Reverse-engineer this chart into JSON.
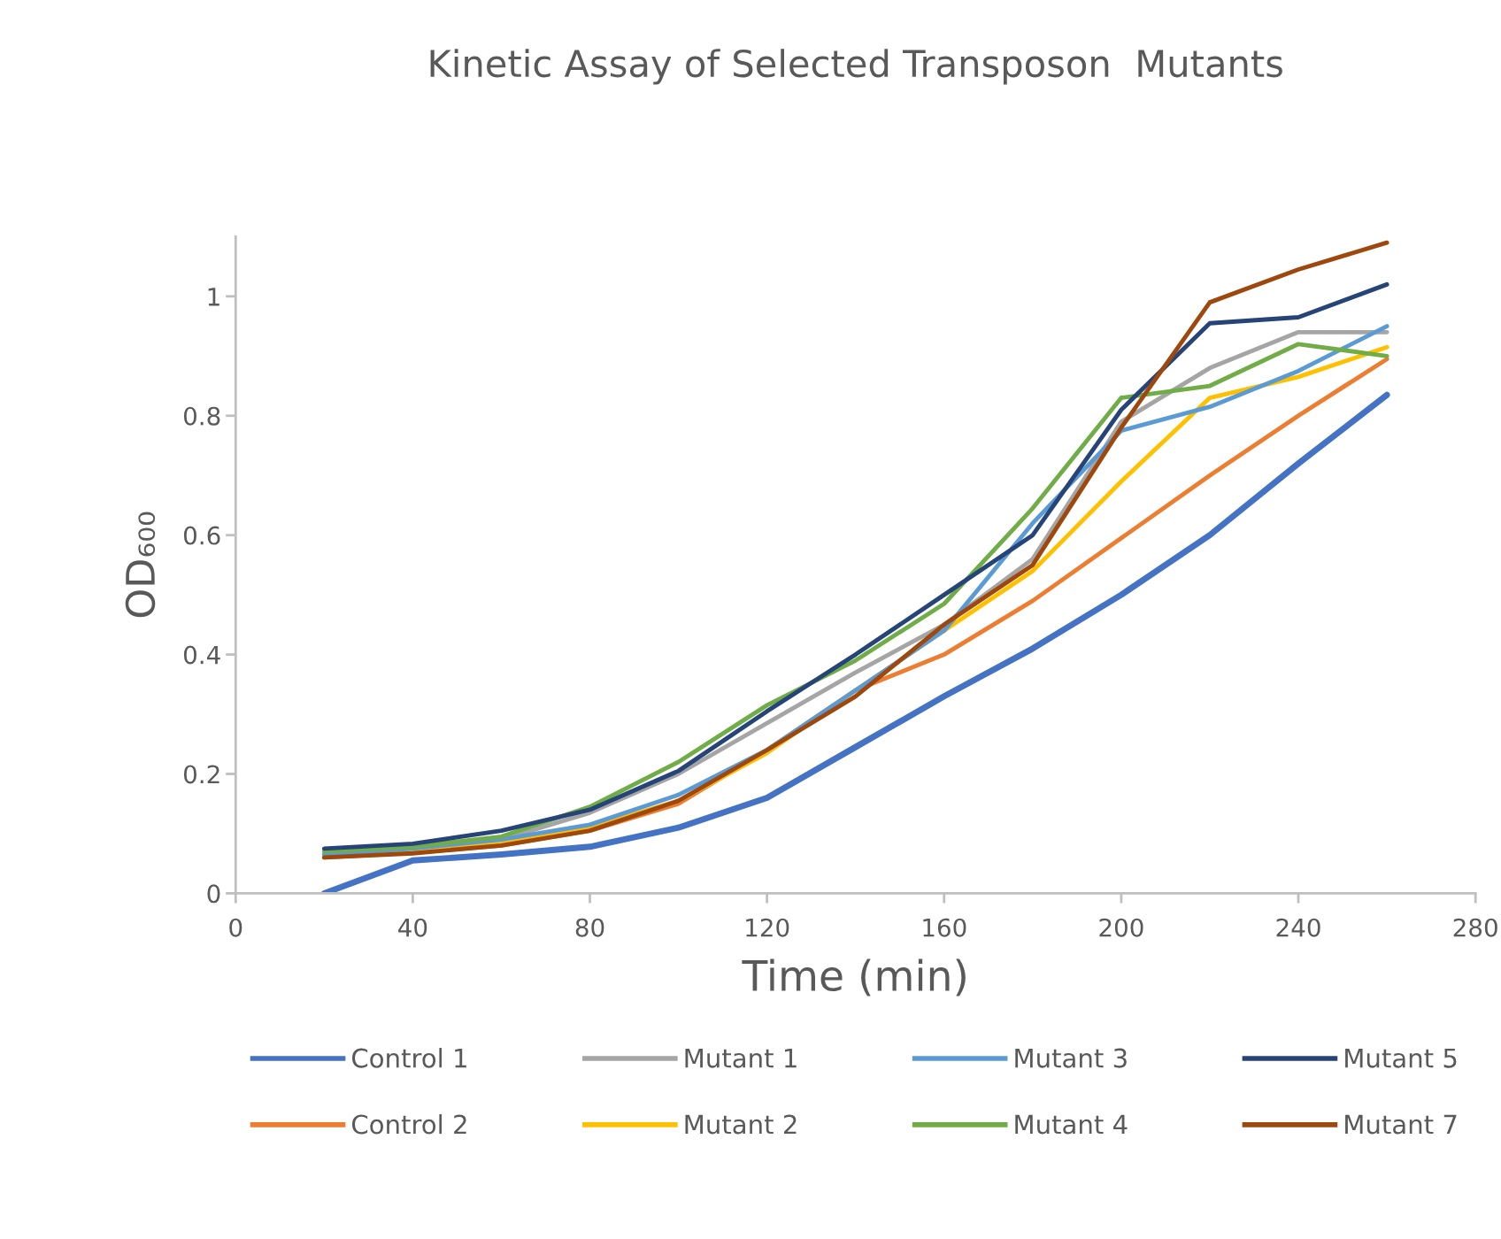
{
  "chart_data": {
    "type": "line",
    "title": "Kinetic Assay of Selected Transposon  Mutants",
    "xlabel": "Time (min)",
    "ylabel": "OD₆₀₀",
    "x": [
      20,
      40,
      60,
      80,
      100,
      120,
      140,
      160,
      180,
      200,
      220,
      240,
      260
    ],
    "series": [
      {
        "name": "Control 1",
        "color": "#4472c4",
        "values": [
          0,
          0.055,
          0.065,
          0.078,
          0.11,
          0.16,
          0.245,
          0.33,
          0.41,
          0.5,
          0.6,
          0.72,
          0.835
        ]
      },
      {
        "name": "Control 2",
        "color": "#ed7d31",
        "values": [
          0.06,
          0.068,
          0.08,
          0.105,
          0.15,
          0.24,
          0.34,
          0.4,
          0.49,
          0.595,
          0.7,
          0.8,
          0.895
        ]
      },
      {
        "name": "Mutant 1",
        "color": "#a5a5a5",
        "values": [
          0.065,
          0.075,
          0.09,
          0.135,
          0.2,
          0.285,
          0.37,
          0.45,
          0.56,
          0.79,
          0.88,
          0.94,
          0.94
        ]
      },
      {
        "name": "Mutant 2",
        "color": "#ffc000",
        "values": [
          0.06,
          0.07,
          0.085,
          0.11,
          0.155,
          0.235,
          0.34,
          0.44,
          0.54,
          0.69,
          0.83,
          0.865,
          0.915
        ]
      },
      {
        "name": "Mutant 3",
        "color": "#5b9bd5",
        "values": [
          0.065,
          0.075,
          0.09,
          0.115,
          0.165,
          0.24,
          0.34,
          0.44,
          0.62,
          0.775,
          0.815,
          0.875,
          0.95
        ]
      },
      {
        "name": "Mutant 4",
        "color": "#70ad47",
        "values": [
          0.07,
          0.078,
          0.095,
          0.145,
          0.22,
          0.315,
          0.39,
          0.485,
          0.645,
          0.83,
          0.85,
          0.92,
          0.9
        ]
      },
      {
        "name": "Mutant 5",
        "color": "#264478",
        "values": [
          0.075,
          0.083,
          0.105,
          0.14,
          0.205,
          0.305,
          0.4,
          0.5,
          0.6,
          0.81,
          0.955,
          0.965,
          1.02
        ]
      },
      {
        "name": "Mutant 7",
        "color": "#9e480e",
        "values": [
          0.06,
          0.067,
          0.08,
          0.105,
          0.155,
          0.24,
          0.33,
          0.45,
          0.55,
          0.78,
          0.99,
          1.045,
          1.09
        ]
      }
    ],
    "xlim": [
      0,
      280
    ],
    "xticks": [
      0,
      40,
      80,
      120,
      160,
      200,
      240,
      280
    ],
    "ylim": [
      0,
      1.1
    ],
    "yticks": [
      0,
      0.2,
      0.4,
      0.6,
      0.8,
      1
    ],
    "grid": false,
    "legend": "bottom",
    "marker": "none",
    "line_style": "solid"
  }
}
